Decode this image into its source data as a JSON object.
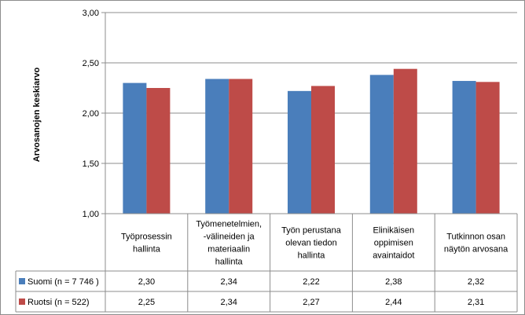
{
  "chart_data": {
    "type": "bar",
    "ylabel": "Arvosanojen keskiarvo",
    "ylim": [
      1.0,
      3.0
    ],
    "yticks": [
      "1,00",
      "1,50",
      "2,00",
      "2,50",
      "3,00"
    ],
    "ytick_values": [
      1.0,
      1.5,
      2.0,
      2.5,
      3.0
    ],
    "grid": true,
    "categories": [
      [
        "Työprosessin",
        "hallinta"
      ],
      [
        "Työmenetelmien,",
        "-välineiden ja",
        "materiaalin",
        "hallinta"
      ],
      [
        "Työn perustana",
        "olevan tiedon",
        "hallinta"
      ],
      [
        "Elinikäisen",
        "oppimisen",
        "avaintaidot"
      ],
      [
        "Tutkinnon osan",
        "näytön arvosana"
      ]
    ],
    "series": [
      {
        "name": "Suomi (n = 7 746 )",
        "color": "#4a7ebb",
        "values": [
          2.3,
          2.34,
          2.22,
          2.38,
          2.32
        ],
        "labels": [
          "2,30",
          "2,34",
          "2,22",
          "2,38",
          "2,32"
        ]
      },
      {
        "name": "Ruotsi (n = 522)",
        "color": "#be4b48",
        "values": [
          2.25,
          2.34,
          2.27,
          2.44,
          2.31
        ],
        "labels": [
          "2,25",
          "2,34",
          "2,27",
          "2,44",
          "2,31"
        ]
      }
    ],
    "legend": "data-table"
  }
}
